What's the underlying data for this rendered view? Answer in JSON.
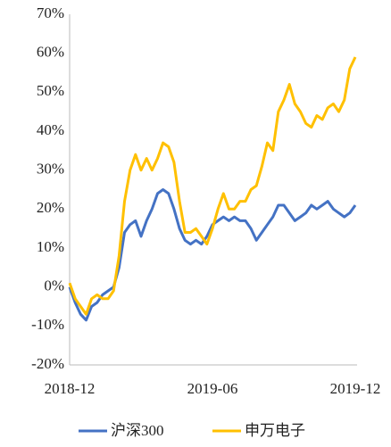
{
  "chart_data": {
    "type": "line",
    "categories": [
      "2018-12",
      null,
      null,
      null,
      null,
      null,
      null,
      null,
      null,
      null,
      null,
      null,
      null,
      null,
      null,
      null,
      null,
      null,
      null,
      null,
      null,
      null,
      null,
      null,
      null,
      null,
      "2019-06",
      null,
      null,
      null,
      null,
      null,
      null,
      null,
      null,
      null,
      null,
      null,
      null,
      null,
      null,
      null,
      null,
      null,
      null,
      null,
      null,
      null,
      null,
      null,
      null,
      null,
      "2019-12"
    ],
    "series": [
      {
        "name": "沪深300",
        "color": "#4472c4",
        "values": [
          0,
          -4,
          -7,
          -8.5,
          -5,
          -4,
          -2,
          -1,
          0,
          5,
          14,
          16,
          17,
          13,
          17,
          20,
          24,
          25,
          24,
          20,
          15,
          12,
          11,
          12,
          11,
          13,
          16,
          17,
          18,
          17,
          18,
          17,
          17,
          15,
          12,
          14,
          16,
          18,
          21,
          21,
          19,
          17,
          18,
          19,
          21,
          20,
          21,
          22,
          20,
          19,
          18,
          19,
          21
        ]
      },
      {
        "name": "申万电子",
        "color": "#ffc000",
        "values": [
          1,
          -3,
          -5,
          -7,
          -3,
          -2,
          -3,
          -3,
          -1,
          8,
          22,
          30,
          34,
          30,
          33,
          30,
          33,
          37,
          36,
          32,
          22,
          14,
          14,
          15,
          13,
          11,
          15,
          20,
          24,
          20,
          20,
          22,
          22,
          25,
          26,
          31,
          37,
          35,
          45,
          48,
          52,
          47,
          45,
          42,
          41,
          44,
          43,
          46,
          47,
          45,
          48,
          56,
          59
        ]
      }
    ],
    "ylim": [
      -20,
      70
    ],
    "yticks": [
      {
        "value": -20,
        "label": "-20%"
      },
      {
        "value": -10,
        "label": "-10%"
      },
      {
        "value": 0,
        "label": "0%"
      },
      {
        "value": 10,
        "label": "10%"
      },
      {
        "value": 20,
        "label": "20%"
      },
      {
        "value": 30,
        "label": "30%"
      },
      {
        "value": 40,
        "label": "40%"
      },
      {
        "value": 50,
        "label": "50%"
      },
      {
        "value": 60,
        "label": "60%"
      },
      {
        "value": 70,
        "label": "70%"
      }
    ],
    "legend": "bottom",
    "grid": false
  }
}
